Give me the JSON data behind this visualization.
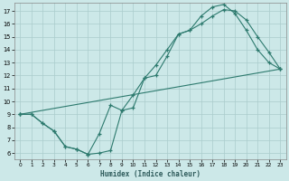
{
  "xlabel": "Humidex (Indice chaleur)",
  "bg_color": "#cce8e8",
  "grid_color": "#aacccc",
  "line_color": "#2d7a6e",
  "xlim": [
    -0.5,
    23.5
  ],
  "ylim": [
    5.5,
    17.6
  ],
  "xticks": [
    0,
    1,
    2,
    3,
    4,
    5,
    6,
    7,
    8,
    9,
    10,
    11,
    12,
    13,
    14,
    15,
    16,
    17,
    18,
    19,
    20,
    21,
    22,
    23
  ],
  "yticks": [
    6,
    7,
    8,
    9,
    10,
    11,
    12,
    13,
    14,
    15,
    16,
    17
  ],
  "curve1_x": [
    0,
    1,
    2,
    3,
    4,
    5,
    6,
    7,
    8,
    9,
    10,
    11,
    12,
    13,
    14,
    15,
    16,
    17,
    18,
    19,
    20,
    21,
    22,
    23
  ],
  "curve1_y": [
    9.0,
    9.0,
    8.3,
    7.7,
    6.5,
    6.3,
    5.9,
    6.0,
    6.2,
    9.3,
    9.5,
    11.8,
    12.0,
    13.5,
    15.2,
    15.5,
    16.0,
    16.6,
    17.1,
    17.0,
    16.3,
    15.0,
    13.8,
    12.5
  ],
  "curve2_x": [
    0,
    1,
    2,
    3,
    4,
    5,
    6,
    7,
    8,
    9,
    10,
    11,
    12,
    13,
    14,
    15,
    16,
    17,
    18,
    19,
    20,
    21,
    22,
    23
  ],
  "curve2_y": [
    9.0,
    9.0,
    8.3,
    7.7,
    6.5,
    6.3,
    5.9,
    7.5,
    9.7,
    9.3,
    10.5,
    11.8,
    12.8,
    14.0,
    15.2,
    15.5,
    16.6,
    17.3,
    17.5,
    16.8,
    15.5,
    14.0,
    13.0,
    12.5
  ],
  "curve3_x": [
    0,
    23
  ],
  "curve3_y": [
    9.0,
    12.5
  ]
}
